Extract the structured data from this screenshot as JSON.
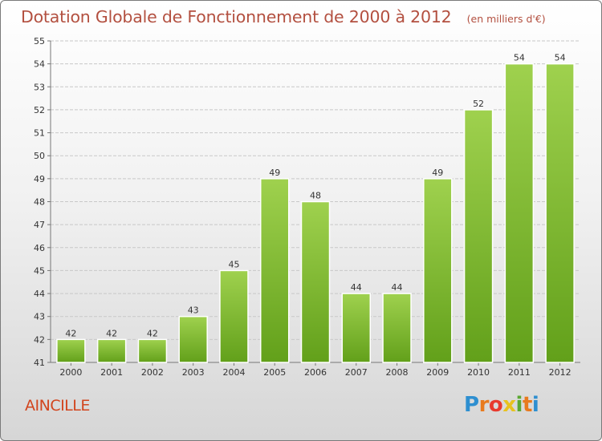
{
  "title": "Dotation Globale de Fonctionnement de 2000 à 2012",
  "unit_note": "(en milliers d'€)",
  "commune": "AINCILLE",
  "logo": {
    "letters": [
      "P",
      "r",
      "o",
      "x",
      "i",
      "t",
      "i"
    ],
    "colors": [
      "#2e8fd0",
      "#e87a1e",
      "#e83a2e",
      "#e8c21e",
      "#5aa832",
      "#e87a1e",
      "#2e8fd0"
    ]
  },
  "chart_data": {
    "type": "bar",
    "categories": [
      "2000",
      "2001",
      "2002",
      "2003",
      "2004",
      "2005",
      "2006",
      "2007",
      "2008",
      "2009",
      "2010",
      "2011",
      "2012"
    ],
    "values": [
      42,
      42,
      42,
      43,
      45,
      49,
      48,
      44,
      44,
      49,
      52,
      54,
      54
    ],
    "ylim": [
      41,
      55
    ],
    "yticks": [
      41,
      42,
      43,
      44,
      45,
      46,
      47,
      48,
      49,
      50,
      51,
      52,
      53,
      54,
      55
    ],
    "grid": true,
    "bar_color": "#7fbf32",
    "xlabel": "",
    "ylabel": ""
  }
}
